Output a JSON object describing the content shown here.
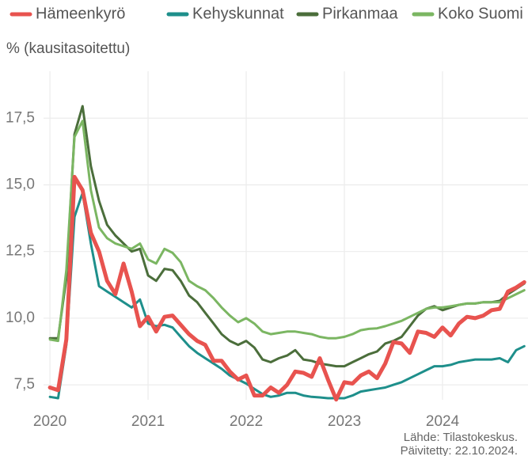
{
  "chart_data": {
    "type": "line",
    "y_label": "% (kausitasoitettu)",
    "source": "Lähde: Tilastokeskus.",
    "updated": "Päivitetty: 22.10.2024.",
    "x": [
      2020,
      2020.083,
      2020.167,
      2020.25,
      2020.333,
      2020.417,
      2020.5,
      2020.583,
      2020.667,
      2020.75,
      2020.833,
      2020.917,
      2021,
      2021.083,
      2021.167,
      2021.25,
      2021.333,
      2021.417,
      2021.5,
      2021.583,
      2021.667,
      2021.75,
      2021.833,
      2021.917,
      2022,
      2022.083,
      2022.167,
      2022.25,
      2022.333,
      2022.417,
      2022.5,
      2022.583,
      2022.667,
      2022.75,
      2022.833,
      2022.917,
      2023,
      2023.083,
      2023.167,
      2023.25,
      2023.333,
      2023.417,
      2023.5,
      2023.583,
      2023.667,
      2023.75,
      2023.833,
      2023.917,
      2024,
      2024.083,
      2024.167,
      2024.25,
      2024.333,
      2024.417,
      2024.5,
      2024.583,
      2024.667,
      2024.75,
      2024.833
    ],
    "series": [
      {
        "name": "Hämeenkyrö",
        "color": "#e8534f",
        "values": [
          7.4,
          7.3,
          9.2,
          15.3,
          14.8,
          13.2,
          12.5,
          11.4,
          10.9,
          12.05,
          11.0,
          9.7,
          10.05,
          9.5,
          10.05,
          10.1,
          9.75,
          9.4,
          9.15,
          9.0,
          8.4,
          8.4,
          8.0,
          7.7,
          7.85,
          7.1,
          7.1,
          7.4,
          7.2,
          7.5,
          8.0,
          7.95,
          7.8,
          8.5,
          7.7,
          6.95,
          7.6,
          7.55,
          7.85,
          8.0,
          7.75,
          8.3,
          9.1,
          9.05,
          8.7,
          9.5,
          9.45,
          9.3,
          9.65,
          9.35,
          9.8,
          10.05,
          10.0,
          10.1,
          10.3,
          10.35,
          11.0,
          11.15,
          11.35
        ]
      },
      {
        "name": "Kehyskunnat",
        "color": "#1e8f8b",
        "values": [
          7.05,
          7.0,
          9.0,
          13.8,
          14.7,
          12.8,
          11.2,
          11.0,
          10.8,
          10.6,
          10.4,
          10.7,
          9.8,
          9.7,
          9.75,
          9.65,
          9.3,
          8.95,
          8.7,
          8.5,
          8.3,
          8.1,
          7.85,
          7.7,
          7.55,
          7.35,
          7.15,
          7.05,
          7.1,
          7.2,
          7.2,
          7.1,
          7.05,
          7.03,
          7.0,
          7.0,
          7.0,
          7.1,
          7.25,
          7.3,
          7.35,
          7.4,
          7.5,
          7.6,
          7.75,
          7.9,
          8.05,
          8.2,
          8.2,
          8.25,
          8.35,
          8.4,
          8.45,
          8.45,
          8.45,
          8.5,
          8.35,
          8.8,
          8.95
        ]
      },
      {
        "name": "Pirkanmaa",
        "color": "#4b6e3b",
        "values": [
          9.25,
          9.25,
          11.5,
          16.9,
          17.95,
          15.7,
          14.4,
          13.5,
          13.1,
          12.8,
          12.5,
          12.6,
          11.6,
          11.4,
          11.85,
          11.8,
          11.4,
          10.85,
          10.6,
          10.2,
          9.8,
          9.4,
          9.15,
          9.0,
          9.15,
          8.9,
          8.45,
          8.35,
          8.5,
          8.6,
          8.8,
          8.45,
          8.4,
          8.3,
          8.25,
          8.2,
          8.2,
          8.35,
          8.5,
          8.65,
          8.75,
          9.05,
          9.15,
          9.3,
          9.7,
          10.1,
          10.35,
          10.45,
          10.3,
          10.4,
          10.5,
          10.55,
          10.55,
          10.6,
          10.6,
          10.65,
          10.9,
          11.1,
          11.3
        ]
      },
      {
        "name": "Koko Suomi",
        "color": "#7bb662",
        "values": [
          9.2,
          9.15,
          11.8,
          16.8,
          17.4,
          14.8,
          13.4,
          13.0,
          12.8,
          12.7,
          12.6,
          12.8,
          12.2,
          12.05,
          12.6,
          12.45,
          12.1,
          11.4,
          11.2,
          11.05,
          10.75,
          10.4,
          10.1,
          9.85,
          10.0,
          9.8,
          9.5,
          9.4,
          9.45,
          9.5,
          9.5,
          9.45,
          9.4,
          9.3,
          9.25,
          9.25,
          9.3,
          9.4,
          9.55,
          9.6,
          9.62,
          9.7,
          9.8,
          9.9,
          10.05,
          10.2,
          10.35,
          10.4,
          10.4,
          10.45,
          10.5,
          10.55,
          10.55,
          10.6,
          10.6,
          10.6,
          10.75,
          10.9,
          11.05
        ]
      }
    ],
    "xlim": [
      2019.935,
      2024.895
    ],
    "xticks": [
      2020,
      2021,
      2022,
      2023,
      2024
    ],
    "ylim": [
      6.94,
      19.26
    ],
    "yticks": [
      {
        "value": 7.5,
        "label": "7,5"
      },
      {
        "value": 10,
        "label": "10,0"
      },
      {
        "value": 12.5,
        "label": "12,5"
      },
      {
        "value": 15,
        "label": "15,0"
      },
      {
        "value": 17.5,
        "label": "17,5"
      }
    ],
    "grid": true,
    "legend": "top"
  }
}
